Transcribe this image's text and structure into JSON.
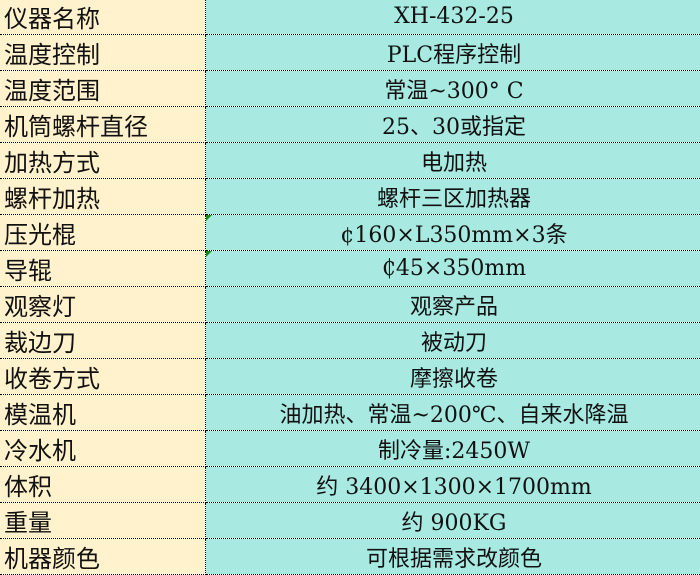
{
  "rows": [
    {
      "label": "仪器名称",
      "value": "XH-432-25"
    },
    {
      "label": "温度控制",
      "value": "PLC程序控制"
    },
    {
      "label": "温度范围",
      "value": "常温~300° C"
    },
    {
      "label": "机筒螺杆直径",
      "value": "25、30或指定"
    },
    {
      "label": "加热方式",
      "value": "电加热"
    },
    {
      "label": "螺杆加热",
      "value": "螺杆三区加热器"
    },
    {
      "label": "压光棍",
      "value": "¢160×L350mm×3条",
      "comment_marker": true
    },
    {
      "label": "导辊",
      "value": "₵45×350mm",
      "comment_marker": true
    },
    {
      "label": "观察灯",
      "value": "观察产品"
    },
    {
      "label": "裁边刀",
      "value": "被动刀"
    },
    {
      "label": "收卷方式",
      "value": "摩擦收卷"
    },
    {
      "label": "模温机",
      "value": "油加热、常温~200℃、自来水降温"
    },
    {
      "label": "冷水机",
      "value": "制冷量:2450W"
    },
    {
      "label": "体积",
      "value": "约 3400×1300×1700mm"
    },
    {
      "label": "重量",
      "value": "约 900KG"
    },
    {
      "label": "机器颜色",
      "value": "可根据需求改颜色"
    }
  ],
  "colors": {
    "label_bg": "#FFF2CC",
    "value_bg": "#A8EAE2",
    "comment_marker": "#1a8a1a"
  }
}
